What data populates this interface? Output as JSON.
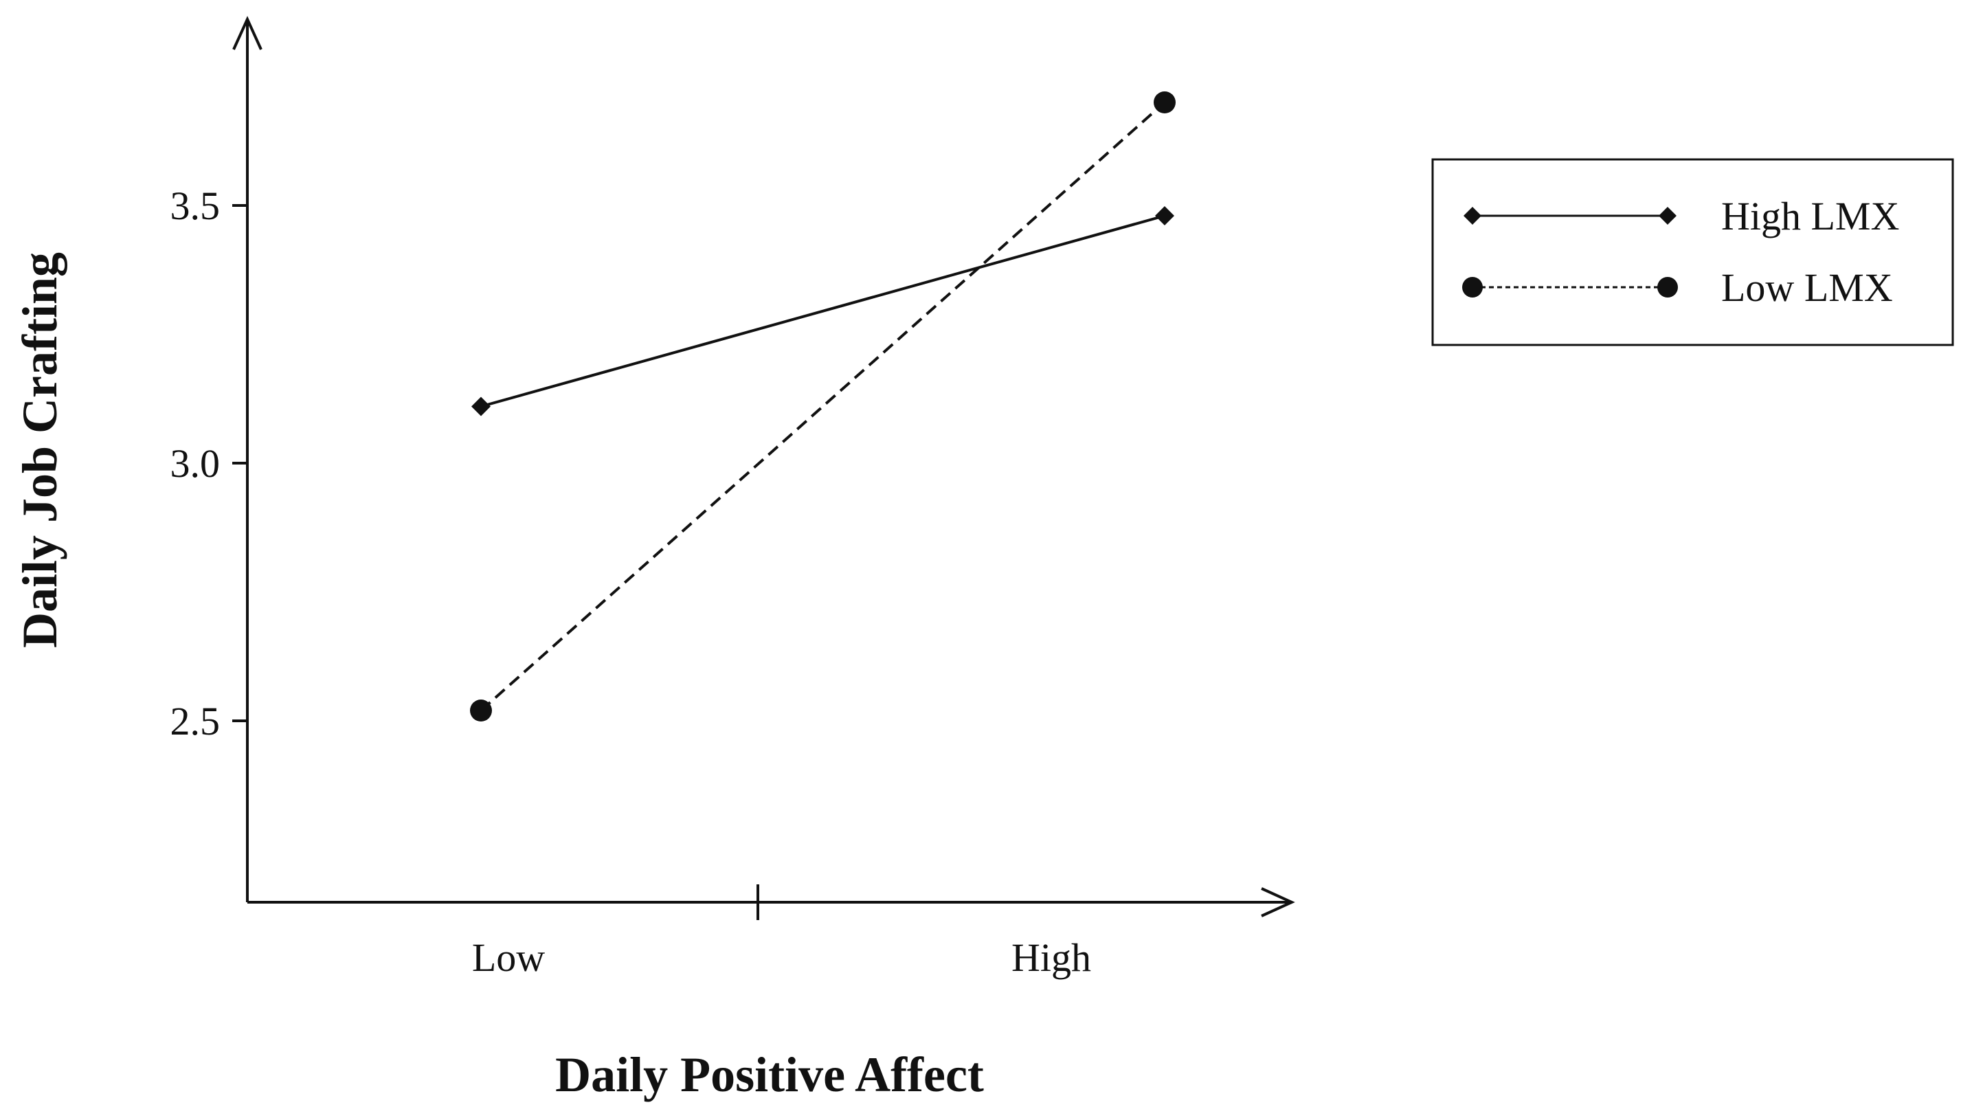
{
  "chart_data": {
    "type": "line",
    "title": "",
    "xlabel": "Daily Positive Affect",
    "ylabel": "Daily Job Crafting",
    "categories": [
      "Low",
      "High"
    ],
    "ylim": [
      2.1,
      3.9
    ],
    "yticks": [
      "2.5",
      "3.0",
      "3.5"
    ],
    "ytick_values": [
      2.5,
      3.0,
      3.5
    ],
    "grid": false,
    "legend_position": "top-right",
    "series": [
      {
        "name": "High LMX",
        "values": [
          3.11,
          3.48
        ],
        "marker": "diamond",
        "line_style": "solid",
        "color": "#111111"
      },
      {
        "name": "Low LMX",
        "values": [
          2.52,
          3.7
        ],
        "marker": "circle",
        "line_style": "dashed",
        "color": "#111111"
      }
    ]
  }
}
